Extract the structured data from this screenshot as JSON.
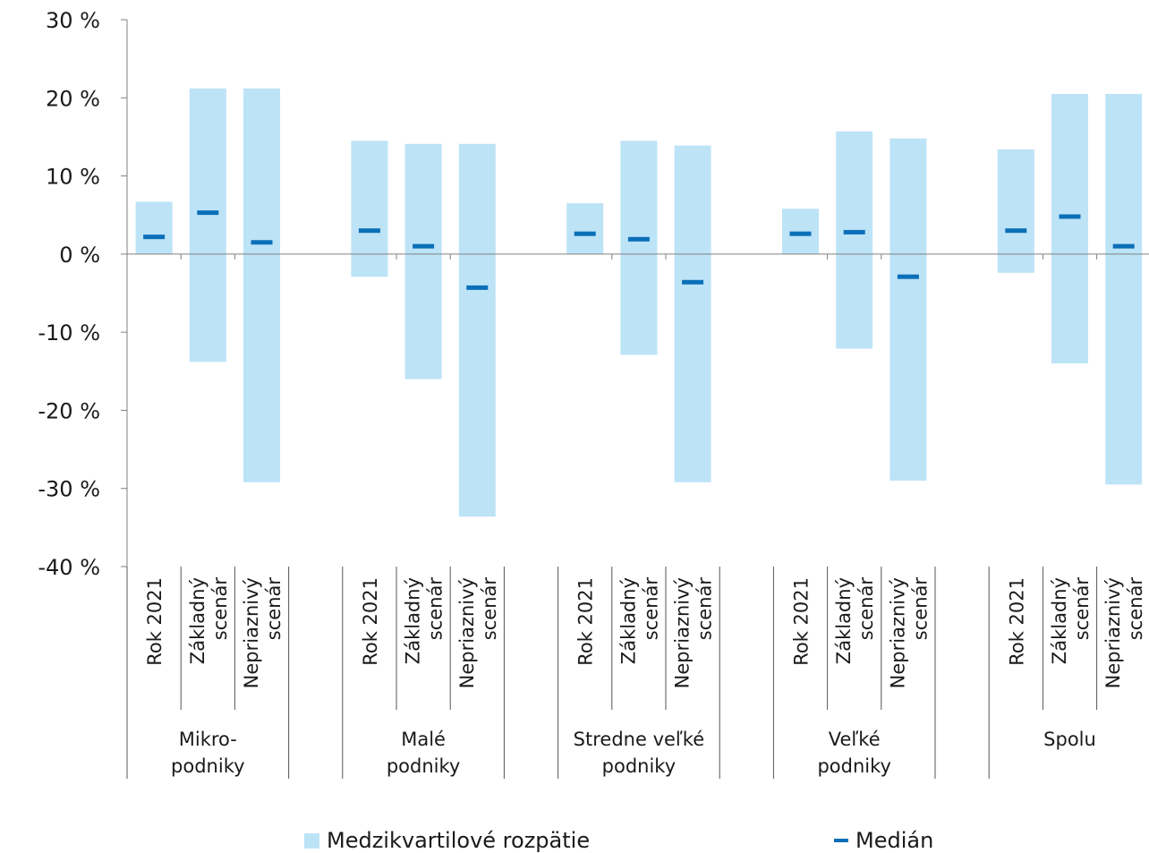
{
  "chart_data": {
    "type": "bar",
    "title": "",
    "xlabel": "",
    "ylabel": "",
    "ylim": [
      -40,
      30
    ],
    "yticks": [
      30,
      20,
      10,
      0,
      -10,
      -20,
      -30,
      -40
    ],
    "ytick_labels": [
      "30 %",
      "20 %",
      "10 %",
      "0 %",
      "-10 %",
      "-20 %",
      "-30 %",
      "-40 %"
    ],
    "grid": false,
    "legend_position": "bottom",
    "colors": {
      "range": "#bde3f7",
      "median": "#0b6fb8",
      "axis": "#808080"
    },
    "groups": [
      {
        "label_lines": [
          "Mikro-",
          "podniky"
        ],
        "categories": [
          {
            "label_lines": [
              "Rok 2021"
            ],
            "q1": 0.0,
            "q3": 6.7,
            "median": 2.2
          },
          {
            "label_lines": [
              "Základný",
              "scenár"
            ],
            "q1": -13.8,
            "q3": 21.2,
            "median": 5.3
          },
          {
            "label_lines": [
              "Nepriaznivý",
              "scenár"
            ],
            "q1": -29.2,
            "q3": 21.2,
            "median": 1.5
          }
        ]
      },
      {
        "label_lines": [
          "Malé",
          "podniky"
        ],
        "categories": [
          {
            "label_lines": [
              "Rok 2021"
            ],
            "q1": -2.9,
            "q3": 14.5,
            "median": 3.0
          },
          {
            "label_lines": [
              "Základný",
              "scenár"
            ],
            "q1": -16.0,
            "q3": 14.1,
            "median": 1.0
          },
          {
            "label_lines": [
              "Nepriaznivý",
              "scenár"
            ],
            "q1": -33.6,
            "q3": 14.1,
            "median": -4.3
          }
        ]
      },
      {
        "label_lines": [
          "Stredne veľké",
          "podniky"
        ],
        "categories": [
          {
            "label_lines": [
              "Rok 2021"
            ],
            "q1": 0.0,
            "q3": 6.5,
            "median": 2.6
          },
          {
            "label_lines": [
              "Základný",
              "scenár"
            ],
            "q1": -12.9,
            "q3": 14.5,
            "median": 1.9
          },
          {
            "label_lines": [
              "Nepriaznivý",
              "scenár"
            ],
            "q1": -29.2,
            "q3": 13.9,
            "median": -3.6
          }
        ]
      },
      {
        "label_lines": [
          "Veľké",
          "podniky"
        ],
        "categories": [
          {
            "label_lines": [
              "Rok 2021"
            ],
            "q1": 0.0,
            "q3": 5.8,
            "median": 2.6
          },
          {
            "label_lines": [
              "Základný",
              "scenár"
            ],
            "q1": -12.1,
            "q3": 15.7,
            "median": 2.8
          },
          {
            "label_lines": [
              "Nepriaznivý",
              "scenár"
            ],
            "q1": -29.0,
            "q3": 14.8,
            "median": -2.9
          }
        ]
      },
      {
        "label_lines": [
          "Spolu"
        ],
        "categories": [
          {
            "label_lines": [
              "Rok 2021"
            ],
            "q1": -2.4,
            "q3": 13.4,
            "median": 3.0
          },
          {
            "label_lines": [
              "Základný",
              "scenár"
            ],
            "q1": -14.0,
            "q3": 20.5,
            "median": 4.8
          },
          {
            "label_lines": [
              "Nepriaznivý",
              "scenár"
            ],
            "q1": -29.5,
            "q3": 20.5,
            "median": 1.0
          }
        ]
      }
    ],
    "legend": [
      {
        "label": "Medzikvartilové rozpätie",
        "marker": "square"
      },
      {
        "label": "Medián",
        "marker": "dash"
      }
    ]
  }
}
